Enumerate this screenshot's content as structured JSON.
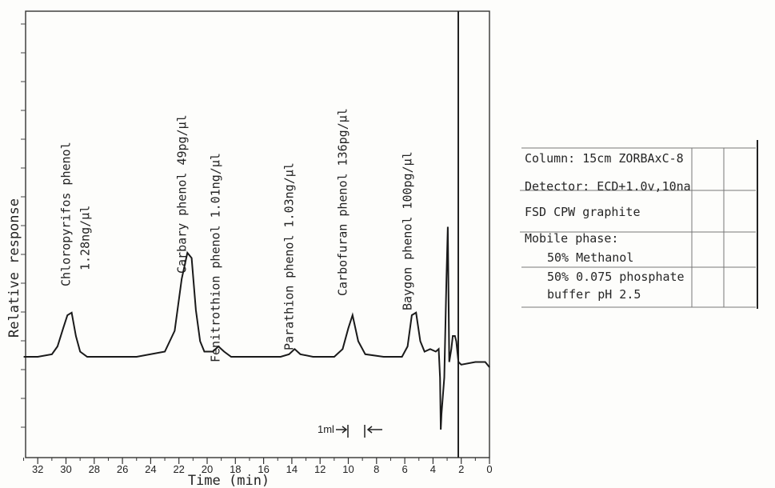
{
  "chart_data": {
    "type": "line",
    "xlabel": "Time (min)",
    "ylabel": "Relative response",
    "x_reversed": true,
    "xlim": [
      33,
      0
    ],
    "x_ticks": [
      32,
      30,
      28,
      26,
      24,
      22,
      20,
      18,
      16,
      14,
      12,
      10,
      8,
      6,
      4,
      2,
      0
    ],
    "ylim": [
      0,
      100
    ],
    "baseline": 22,
    "trace": {
      "x": [
        33,
        32,
        31,
        30.6,
        30.2,
        29.9,
        29.6,
        29.3,
        29.0,
        28.5,
        27,
        25,
        23,
        22.3,
        21.8,
        21.4,
        21.1,
        20.8,
        20.5,
        20.2,
        19.6,
        19.2,
        18.8,
        18.3,
        17.5,
        16,
        14.8,
        14.2,
        13.8,
        13.4,
        12.5,
        11,
        10.4,
        10.0,
        9.7,
        9.3,
        8.8,
        7.5,
        6.2,
        5.8,
        5.5,
        5.2,
        4.9,
        4.6,
        4.2,
        3.8,
        3.6,
        3.5,
        3.45,
        3.4,
        3.2,
        3.05,
        2.95,
        2.85,
        2.7,
        2.6,
        2.45,
        2.35,
        2.2,
        2.0,
        1.0,
        0.3,
        0.0
      ],
      "y": [
        22,
        22,
        23,
        26,
        33,
        38,
        39,
        30,
        24,
        22,
        22,
        22,
        24,
        32,
        52,
        62,
        60,
        40,
        28,
        24,
        24,
        26,
        24,
        22,
        22,
        22,
        22,
        23,
        25,
        23,
        22,
        22,
        25,
        33,
        38,
        28,
        23,
        22,
        22,
        26,
        38,
        39,
        28,
        24,
        25,
        24,
        25,
        14,
        -6,
        0,
        14,
        52,
        72,
        20,
        25,
        30,
        30,
        28,
        20,
        19,
        20,
        20,
        18
      ]
    },
    "peaks": [
      {
        "x": 29.6,
        "name": "Chloropyrifos phenol",
        "amount": "1.28ng/µl"
      },
      {
        "x": 21.4,
        "name": "Carbary phenol 49pg/µl"
      },
      {
        "x": 19.0,
        "name": "Fenitrothion phenol 1.01ng/µl"
      },
      {
        "x": 13.8,
        "name": "Parathion phenol 1.03ng/µl"
      },
      {
        "x": 10.0,
        "name": "Carbofuran phenol 136pg/µl"
      },
      {
        "x": 5.4,
        "name": "Baygon phenol 100pg/µl"
      }
    ],
    "annotation": "1ml"
  },
  "conditions": {
    "column": "Column: 15cm ZORBAxC-8",
    "detector": "Detector: ECD+1.0v,10na",
    "fsd": "FSD CPW graphite",
    "mobile_phase": "Mobile phase:",
    "methanol": "50% Methanol",
    "phosphate": "50% 0.075 phosphate",
    "buffer": "buffer pH 2.5"
  }
}
